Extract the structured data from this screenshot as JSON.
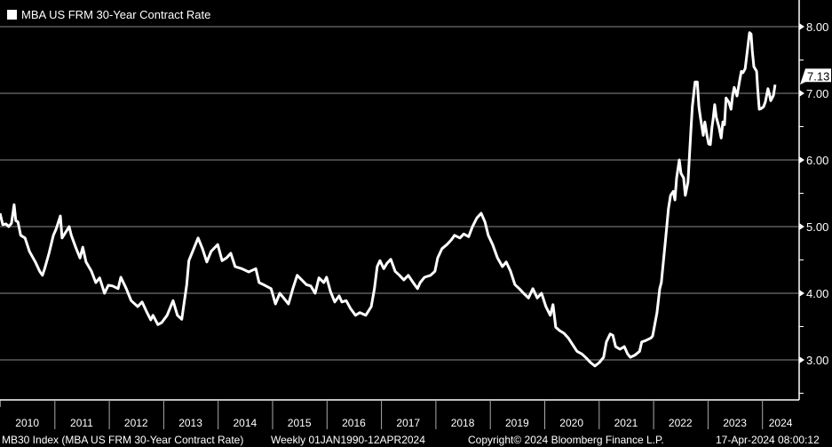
{
  "chart_data": {
    "type": "line",
    "title": "MBA US FRM 30-Year Contract Rate",
    "xlabel": "",
    "ylabel": "",
    "ylim": [
      2.4,
      8.4
    ],
    "xlim": [
      2010.0,
      2024.7
    ],
    "grid": true,
    "legend_position": "top-left",
    "y_ticks": [
      "3.00",
      "4.00",
      "5.00",
      "6.00",
      "7.00",
      "8.00"
    ],
    "x_ticks": [
      "2010",
      "2011",
      "2012",
      "2013",
      "2014",
      "2015",
      "2016",
      "2017",
      "2018",
      "2019",
      "2020",
      "2021",
      "2022",
      "2023",
      "2024"
    ],
    "last_value_label": "7.13",
    "series": [
      {
        "name": "MBA US FRM 30-Year Contract Rate",
        "color": "#ffffff",
        "points": [
          [
            2010.0,
            5.2
          ],
          [
            2010.05,
            5.03
          ],
          [
            2010.11,
            5.04
          ],
          [
            2010.16,
            5.0
          ],
          [
            2010.21,
            5.05
          ],
          [
            2010.26,
            5.33
          ],
          [
            2010.29,
            5.09
          ],
          [
            2010.33,
            5.07
          ],
          [
            2010.38,
            4.87
          ],
          [
            2010.46,
            4.83
          ],
          [
            2010.54,
            4.63
          ],
          [
            2010.65,
            4.47
          ],
          [
            2010.73,
            4.33
          ],
          [
            2010.78,
            4.27
          ],
          [
            2010.82,
            4.37
          ],
          [
            2010.9,
            4.6
          ],
          [
            2010.98,
            4.87
          ],
          [
            2011.03,
            4.96
          ],
          [
            2011.11,
            5.16
          ],
          [
            2011.14,
            4.83
          ],
          [
            2011.27,
            5.0
          ],
          [
            2011.31,
            4.87
          ],
          [
            2011.39,
            4.69
          ],
          [
            2011.47,
            4.53
          ],
          [
            2011.52,
            4.69
          ],
          [
            2011.58,
            4.47
          ],
          [
            2011.68,
            4.33
          ],
          [
            2011.76,
            4.16
          ],
          [
            2011.83,
            4.23
          ],
          [
            2011.92,
            4.0
          ],
          [
            2011.99,
            4.12
          ],
          [
            2012.07,
            4.11
          ],
          [
            2012.17,
            4.07
          ],
          [
            2012.22,
            4.24
          ],
          [
            2012.32,
            4.07
          ],
          [
            2012.41,
            3.89
          ],
          [
            2012.53,
            3.8
          ],
          [
            2012.61,
            3.87
          ],
          [
            2012.69,
            3.73
          ],
          [
            2012.77,
            3.6
          ],
          [
            2012.81,
            3.67
          ],
          [
            2012.9,
            3.53
          ],
          [
            2012.97,
            3.56
          ],
          [
            2013.07,
            3.67
          ],
          [
            2013.18,
            3.89
          ],
          [
            2013.26,
            3.67
          ],
          [
            2013.34,
            3.61
          ],
          [
            2013.43,
            4.13
          ],
          [
            2013.47,
            4.49
          ],
          [
            2013.56,
            4.67
          ],
          [
            2013.64,
            4.83
          ],
          [
            2013.72,
            4.67
          ],
          [
            2013.8,
            4.47
          ],
          [
            2013.88,
            4.63
          ],
          [
            2014.0,
            4.73
          ],
          [
            2014.08,
            4.49
          ],
          [
            2014.16,
            4.53
          ],
          [
            2014.24,
            4.6
          ],
          [
            2014.32,
            4.4
          ],
          [
            2014.44,
            4.37
          ],
          [
            2014.57,
            4.32
          ],
          [
            2014.7,
            4.37
          ],
          [
            2014.76,
            4.16
          ],
          [
            2014.84,
            4.13
          ],
          [
            2014.98,
            4.07
          ],
          [
            2015.06,
            3.84
          ],
          [
            2015.14,
            4.0
          ],
          [
            2015.22,
            3.92
          ],
          [
            2015.3,
            3.84
          ],
          [
            2015.38,
            4.07
          ],
          [
            2015.46,
            4.27
          ],
          [
            2015.63,
            4.13
          ],
          [
            2015.71,
            4.11
          ],
          [
            2015.79,
            4.0
          ],
          [
            2015.86,
            4.23
          ],
          [
            2015.95,
            4.16
          ],
          [
            2016.0,
            4.24
          ],
          [
            2016.07,
            4.03
          ],
          [
            2016.15,
            3.87
          ],
          [
            2016.23,
            3.96
          ],
          [
            2016.28,
            3.87
          ],
          [
            2016.36,
            3.89
          ],
          [
            2016.44,
            3.77
          ],
          [
            2016.53,
            3.67
          ],
          [
            2016.61,
            3.71
          ],
          [
            2016.72,
            3.67
          ],
          [
            2016.82,
            3.8
          ],
          [
            2016.88,
            4.07
          ],
          [
            2016.93,
            4.4
          ],
          [
            2016.98,
            4.49
          ],
          [
            2017.05,
            4.37
          ],
          [
            2017.11,
            4.45
          ],
          [
            2017.18,
            4.51
          ],
          [
            2017.26,
            4.33
          ],
          [
            2017.34,
            4.27
          ],
          [
            2017.42,
            4.2
          ],
          [
            2017.5,
            4.27
          ],
          [
            2017.59,
            4.16
          ],
          [
            2017.67,
            4.07
          ],
          [
            2017.72,
            4.16
          ],
          [
            2017.8,
            4.24
          ],
          [
            2017.91,
            4.27
          ],
          [
            2017.99,
            4.33
          ],
          [
            2018.04,
            4.53
          ],
          [
            2018.12,
            4.67
          ],
          [
            2018.21,
            4.73
          ],
          [
            2018.29,
            4.8
          ],
          [
            2018.35,
            4.87
          ],
          [
            2018.45,
            4.83
          ],
          [
            2018.52,
            4.89
          ],
          [
            2018.61,
            4.85
          ],
          [
            2018.68,
            5.0
          ],
          [
            2018.76,
            5.13
          ],
          [
            2018.84,
            5.2
          ],
          [
            2018.91,
            5.07
          ],
          [
            2018.97,
            4.87
          ],
          [
            2019.05,
            4.73
          ],
          [
            2019.14,
            4.53
          ],
          [
            2019.23,
            4.4
          ],
          [
            2019.3,
            4.47
          ],
          [
            2019.38,
            4.33
          ],
          [
            2019.46,
            4.13
          ],
          [
            2019.54,
            4.07
          ],
          [
            2019.62,
            4.0
          ],
          [
            2019.71,
            3.93
          ],
          [
            2019.79,
            4.07
          ],
          [
            2019.87,
            3.93
          ],
          [
            2019.95,
            4.0
          ],
          [
            2020.03,
            3.8
          ],
          [
            2020.11,
            3.67
          ],
          [
            2020.16,
            3.83
          ],
          [
            2020.21,
            3.49
          ],
          [
            2020.28,
            3.44
          ],
          [
            2020.36,
            3.4
          ],
          [
            2020.44,
            3.33
          ],
          [
            2020.52,
            3.23
          ],
          [
            2020.6,
            3.13
          ],
          [
            2020.69,
            3.09
          ],
          [
            2020.77,
            3.03
          ],
          [
            2020.85,
            2.96
          ],
          [
            2020.93,
            2.91
          ],
          [
            2021.01,
            2.96
          ],
          [
            2021.09,
            3.04
          ],
          [
            2021.14,
            3.27
          ],
          [
            2021.21,
            3.39
          ],
          [
            2021.26,
            3.37
          ],
          [
            2021.31,
            3.2
          ],
          [
            2021.39,
            3.16
          ],
          [
            2021.47,
            3.2
          ],
          [
            2021.53,
            3.09
          ],
          [
            2021.58,
            3.04
          ],
          [
            2021.66,
            3.07
          ],
          [
            2021.75,
            3.13
          ],
          [
            2021.79,
            3.27
          ],
          [
            2021.86,
            3.29
          ],
          [
            2021.96,
            3.33
          ],
          [
            2021.99,
            3.36
          ],
          [
            2022.07,
            3.71
          ],
          [
            2022.12,
            4.07
          ],
          [
            2022.15,
            4.16
          ],
          [
            2022.23,
            4.83
          ],
          [
            2022.28,
            5.27
          ],
          [
            2022.32,
            5.47
          ],
          [
            2022.37,
            5.53
          ],
          [
            2022.4,
            5.4
          ],
          [
            2022.43,
            5.73
          ],
          [
            2022.48,
            6.0
          ],
          [
            2022.51,
            5.8
          ],
          [
            2022.56,
            5.73
          ],
          [
            2022.59,
            5.47
          ],
          [
            2022.64,
            5.67
          ],
          [
            2022.69,
            6.4
          ],
          [
            2022.72,
            6.8
          ],
          [
            2022.77,
            7.17
          ],
          [
            2022.81,
            7.17
          ],
          [
            2022.84,
            6.8
          ],
          [
            2022.87,
            6.63
          ],
          [
            2022.92,
            6.37
          ],
          [
            2022.95,
            6.57
          ],
          [
            2022.99,
            6.36
          ],
          [
            2023.02,
            6.24
          ],
          [
            2023.05,
            6.23
          ],
          [
            2023.08,
            6.49
          ],
          [
            2023.1,
            6.6
          ],
          [
            2023.13,
            6.83
          ],
          [
            2023.16,
            6.64
          ],
          [
            2023.21,
            6.49
          ],
          [
            2023.25,
            6.33
          ],
          [
            2023.28,
            6.57
          ],
          [
            2023.31,
            6.53
          ],
          [
            2023.34,
            6.93
          ],
          [
            2023.39,
            6.87
          ],
          [
            2023.43,
            6.76
          ],
          [
            2023.46,
            6.97
          ],
          [
            2023.49,
            7.09
          ],
          [
            2023.54,
            6.96
          ],
          [
            2023.59,
            7.2
          ],
          [
            2023.62,
            7.33
          ],
          [
            2023.65,
            7.31
          ],
          [
            2023.69,
            7.37
          ],
          [
            2023.74,
            7.71
          ],
          [
            2023.77,
            7.91
          ],
          [
            2023.8,
            7.89
          ],
          [
            2023.82,
            7.64
          ],
          [
            2023.85,
            7.4
          ],
          [
            2023.9,
            7.33
          ],
          [
            2023.92,
            7.07
          ],
          [
            2023.95,
            6.76
          ],
          [
            2023.98,
            6.77
          ],
          [
            2024.03,
            6.8
          ],
          [
            2024.06,
            6.87
          ],
          [
            2024.11,
            7.07
          ],
          [
            2024.14,
            6.97
          ],
          [
            2024.16,
            6.89
          ],
          [
            2024.21,
            6.97
          ],
          [
            2024.24,
            7.13
          ]
        ]
      }
    ]
  },
  "legend": {
    "label": "MBA US FRM 30-Year Contract Rate"
  },
  "footer": {
    "ticker": "MB30 Index (MBA US FRM 30-Year Contract Rate)",
    "frequency": "Weekly 01JAN1990-12APR2024",
    "copyright": "Copyright© 2024 Bloomberg Finance L.P.",
    "timestamp": "17-Apr-2024 08:00:12"
  }
}
